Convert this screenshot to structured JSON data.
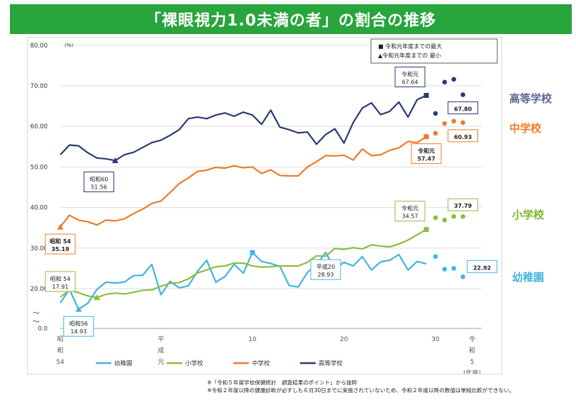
{
  "banner": {
    "title": "「裸眼視力1.0未満の者」の割合の推移"
  },
  "footnotes": [
    "※「令和５年度学校保健統計　調査結果のポイント」から抜粋",
    "※令和２年度以降の健康診断が必ずしも６月30日までに実施されていないため、令和２年度以降の数値は単純比較ができない。"
  ],
  "side_labels": {
    "high": {
      "text": "高等学校",
      "color": "#5a6592"
    },
    "junior": {
      "text": "中学校",
      "color": "#f07a27"
    },
    "elem": {
      "text": "小学校",
      "color": "#7cb32a"
    },
    "kinder": {
      "text": "幼稚園",
      "color": "#42b4e0"
    }
  },
  "chart_data": {
    "type": "line",
    "ylabel": "(%)",
    "ylim": [
      0,
      80
    ],
    "yticks": [
      "0.0",
      "20.00",
      "30.00",
      "40.00",
      "50.00",
      "60.00",
      "70.00",
      "80.00"
    ],
    "axis_break": "～\n～",
    "xlim": [
      0,
      38
    ],
    "x_tick_labels": [
      {
        "x": 0,
        "lines": [
          "昭",
          "和",
          "54"
        ]
      },
      {
        "x": 11,
        "lines": [
          "平",
          "成",
          "元"
        ]
      },
      {
        "x": 21,
        "lines": [
          "10"
        ]
      },
      {
        "x": 31,
        "lines": [
          "20"
        ]
      },
      {
        "x": 41,
        "lines": [
          "30"
        ]
      },
      {
        "x": 45,
        "lines": [
          "令",
          "和",
          "5",
          "(年度)"
        ]
      }
    ],
    "legend_items": [
      "幼稚園",
      "小学校",
      "中学校",
      "高等学校"
    ],
    "marker_legend": [
      "■ 令和元年度までの最大",
      "▲令和元年度までの 最小"
    ],
    "series": [
      {
        "name": "幼稚園",
        "color": "#42b4e0",
        "values": [
          16.5,
          19.8,
          14.9,
          16.4,
          19.8,
          21.6,
          21.4,
          21.6,
          23.2,
          23.3,
          26.0,
          18.5,
          21.8,
          20.2,
          20.7,
          24.3,
          27.0,
          21.6,
          23.0,
          26.0,
          23.8,
          28.9,
          26.7,
          26.2,
          25.5,
          20.8,
          20.4,
          24.0,
          26.0,
          28.9,
          24.8,
          26.5,
          25.6,
          27.9,
          24.6,
          26.6,
          27.0,
          28.4,
          24.6,
          26.7,
          26.1
        ],
        "tail": [
          27.9,
          24.8,
          25.0,
          22.92
        ]
      },
      {
        "name": "小学校",
        "color": "#8cbd3f",
        "values": [
          17.91,
          19.6,
          19.0,
          18.2,
          17.8,
          18.6,
          18.9,
          18.7,
          19.1,
          19.6,
          19.7,
          20.6,
          21.3,
          21.5,
          22.4,
          23.9,
          24.6,
          25.4,
          25.6,
          26.3,
          26.3,
          25.6,
          25.3,
          25.4,
          25.6,
          25.6,
          25.6,
          26.5,
          28.1,
          28.0,
          29.9,
          29.7,
          30.1,
          29.8,
          30.8,
          30.5,
          30.3,
          31.0,
          32.0,
          33.3,
          34.57
        ],
        "tail": [
          37.5,
          36.9,
          37.8,
          37.79
        ]
      },
      {
        "name": "中学校",
        "color": "#f07a27",
        "values": [
          35.19,
          38.1,
          36.9,
          36.5,
          35.7,
          36.9,
          36.7,
          37.2,
          38.5,
          39.6,
          41.0,
          41.6,
          43.7,
          45.9,
          47.3,
          48.9,
          49.2,
          49.9,
          49.7,
          50.3,
          49.8,
          50.0,
          48.4,
          49.3,
          47.9,
          47.8,
          47.8,
          50.0,
          51.3,
          52.8,
          52.7,
          52.9,
          51.7,
          54.4,
          52.8,
          53.0,
          54.1,
          54.7,
          56.3,
          56.0,
          57.47
        ],
        "tail": [
          58.3,
          60.7,
          61.3,
          60.93
        ]
      },
      {
        "name": "高等学校",
        "color": "#2a3a72",
        "values": [
          53.0,
          55.4,
          55.2,
          53.5,
          52.2,
          52.0,
          51.56,
          53.0,
          53.6,
          54.8,
          56.0,
          56.6,
          57.8,
          59.2,
          61.9,
          62.3,
          61.9,
          62.8,
          63.3,
          62.5,
          63.5,
          62.8,
          60.5,
          64.0,
          59.8,
          59.2,
          58.4,
          58.6,
          55.6,
          58.0,
          59.4,
          55.9,
          60.9,
          64.5,
          65.8,
          62.9,
          63.7,
          66.0,
          62.3,
          66.6,
          67.64
        ],
        "tail": [
          63.2,
          70.9,
          71.6,
          67.8
        ]
      }
    ],
    "annotations": [
      {
        "series": 3,
        "index": 40,
        "lines": [
          "令和元",
          "67.64"
        ],
        "box": "top-left"
      },
      {
        "series": 3,
        "index": 44,
        "lines": [
          "67.80"
        ],
        "box": "below",
        "bold": true
      },
      {
        "series": 2,
        "index": 40,
        "lines": [
          "令和元",
          "57.47"
        ],
        "box": "below",
        "bold": true
      },
      {
        "series": 2,
        "index": 44,
        "lines": [
          "60.93"
        ],
        "box": "below",
        "bold": true
      },
      {
        "series": 3,
        "index": 6,
        "lines": [
          "昭和60",
          "51.56"
        ],
        "box": "below-left"
      },
      {
        "series": 2,
        "index": 0,
        "lines": [
          "昭和 54",
          "35.19"
        ],
        "box": "below",
        "bold": true
      },
      {
        "series": 1,
        "index": 40,
        "lines": [
          "令和元",
          "34.57"
        ],
        "box": "top-left"
      },
      {
        "series": 1,
        "index": 44,
        "lines": [
          "37.79"
        ],
        "box": "above",
        "bold": true
      },
      {
        "series": 1,
        "index": 0,
        "lines": [
          "昭和 54",
          "17.91"
        ],
        "box": "above"
      },
      {
        "series": 0,
        "index": 2,
        "lines": [
          "昭和56",
          "14.93"
        ],
        "box": "below"
      },
      {
        "series": 0,
        "index": 29,
        "lines": [
          "平成20",
          "28.93"
        ],
        "box": "below"
      },
      {
        "series": 0,
        "index": 44,
        "lines": [
          "22.92"
        ],
        "box": "above-right",
        "bold": true
      }
    ]
  }
}
